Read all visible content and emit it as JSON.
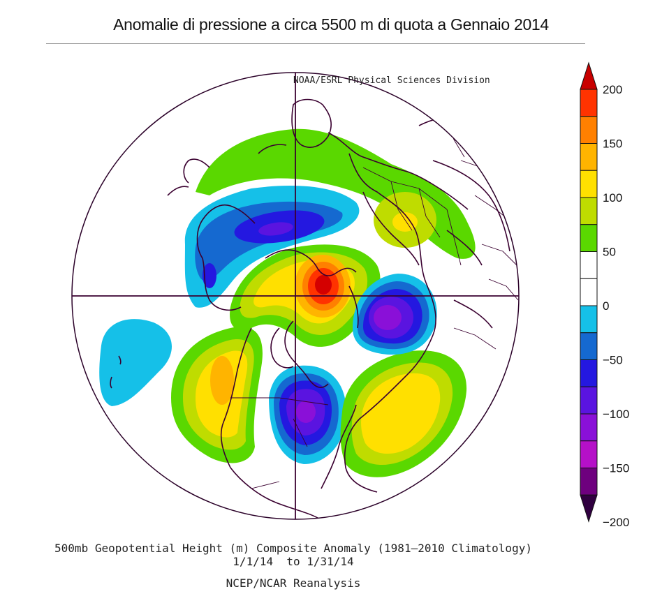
{
  "title": "Anomalie di pressione a circa 5500 m di quota a Gennaio 2014",
  "credit": "NOAA/ESRL Physical Sciences Division",
  "footer": {
    "line1": "500mb Geopotential Height (m) Composite Anomaly (1981–2010 Climatology)",
    "line2": "1/1/14  to 1/31/14",
    "line3": "NCEP/NCAR Reanalysis"
  },
  "colorbar": {
    "levels": [
      -200,
      -175,
      -150,
      -125,
      -100,
      -75,
      -50,
      -25,
      0,
      25,
      50,
      75,
      100,
      125,
      150,
      175,
      200
    ],
    "labels": [
      "200",
      "150",
      "100",
      "50",
      "0",
      "−50",
      "−100",
      "−150",
      "−200"
    ],
    "label_values": [
      200,
      150,
      100,
      50,
      0,
      -50,
      -100,
      -150,
      -200
    ],
    "colors_top_to_bottom": [
      "#d40000",
      "#ff3300",
      "#ff8000",
      "#ffb400",
      "#ffe000",
      "#bfdc00",
      "#5ad800",
      "#ffffff",
      "#ffffff",
      "#15c0e8",
      "#1569d0",
      "#2418e0",
      "#5a14e0",
      "#8a10d8",
      "#b510c8",
      "#6e007e",
      "#360044"
    ],
    "arrow_top_color": "#c80000",
    "arrow_bottom_color": "#300040"
  },
  "map": {
    "projection": "north polar stereographic",
    "anomalies": [
      {
        "region": "north of Scandinavia / Barents",
        "peak_m": 200
      },
      {
        "region": "eastern North America",
        "peak_m": -150
      },
      {
        "region": "Siberia / Okhotsk",
        "peak_m": -150
      },
      {
        "region": "western North America / Alaska",
        "peak_m": 150
      },
      {
        "region": "North Atlantic",
        "peak_m": 100
      },
      {
        "region": "Central Asia",
        "peak_m": 75
      },
      {
        "region": "North Africa",
        "peak_m": -100
      },
      {
        "region": "Central Pacific",
        "peak_m": -50
      }
    ]
  }
}
